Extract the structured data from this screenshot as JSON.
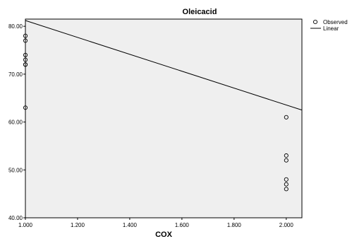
{
  "chart_data": {
    "type": "scatter",
    "title": "Oleicacid",
    "xlabel": "COX",
    "ylabel": "",
    "xlim": [
      1.0,
      2.06
    ],
    "ylim": [
      40.0,
      81.5
    ],
    "x_ticks": [
      1.0,
      1.2,
      1.4,
      1.6,
      1.8,
      2.0
    ],
    "x_tick_labels": [
      "1.000",
      "1.200",
      "1.400",
      "1.600",
      "1.800",
      "2.000"
    ],
    "y_ticks": [
      40.0,
      50.0,
      60.0,
      70.0,
      80.0
    ],
    "y_tick_labels": [
      "40.00",
      "50.00",
      "60.00",
      "70.00",
      "80.00"
    ],
    "grid": false,
    "legend_position": "right",
    "series": [
      {
        "name": "Observed",
        "kind": "scatter",
        "x": [
          1,
          1,
          1,
          1,
          1,
          1,
          1,
          2,
          2,
          2,
          2,
          2,
          2
        ],
        "y": [
          78,
          77,
          74,
          73,
          72,
          72,
          63,
          61,
          53,
          52,
          48,
          47,
          46
        ]
      },
      {
        "name": "Linear",
        "kind": "line",
        "x": [
          1.0,
          2.06
        ],
        "y": [
          81.2,
          62.5
        ]
      }
    ],
    "colors": {
      "plot_background": "#efefef",
      "marker": "#000000",
      "line": "#000000"
    }
  }
}
